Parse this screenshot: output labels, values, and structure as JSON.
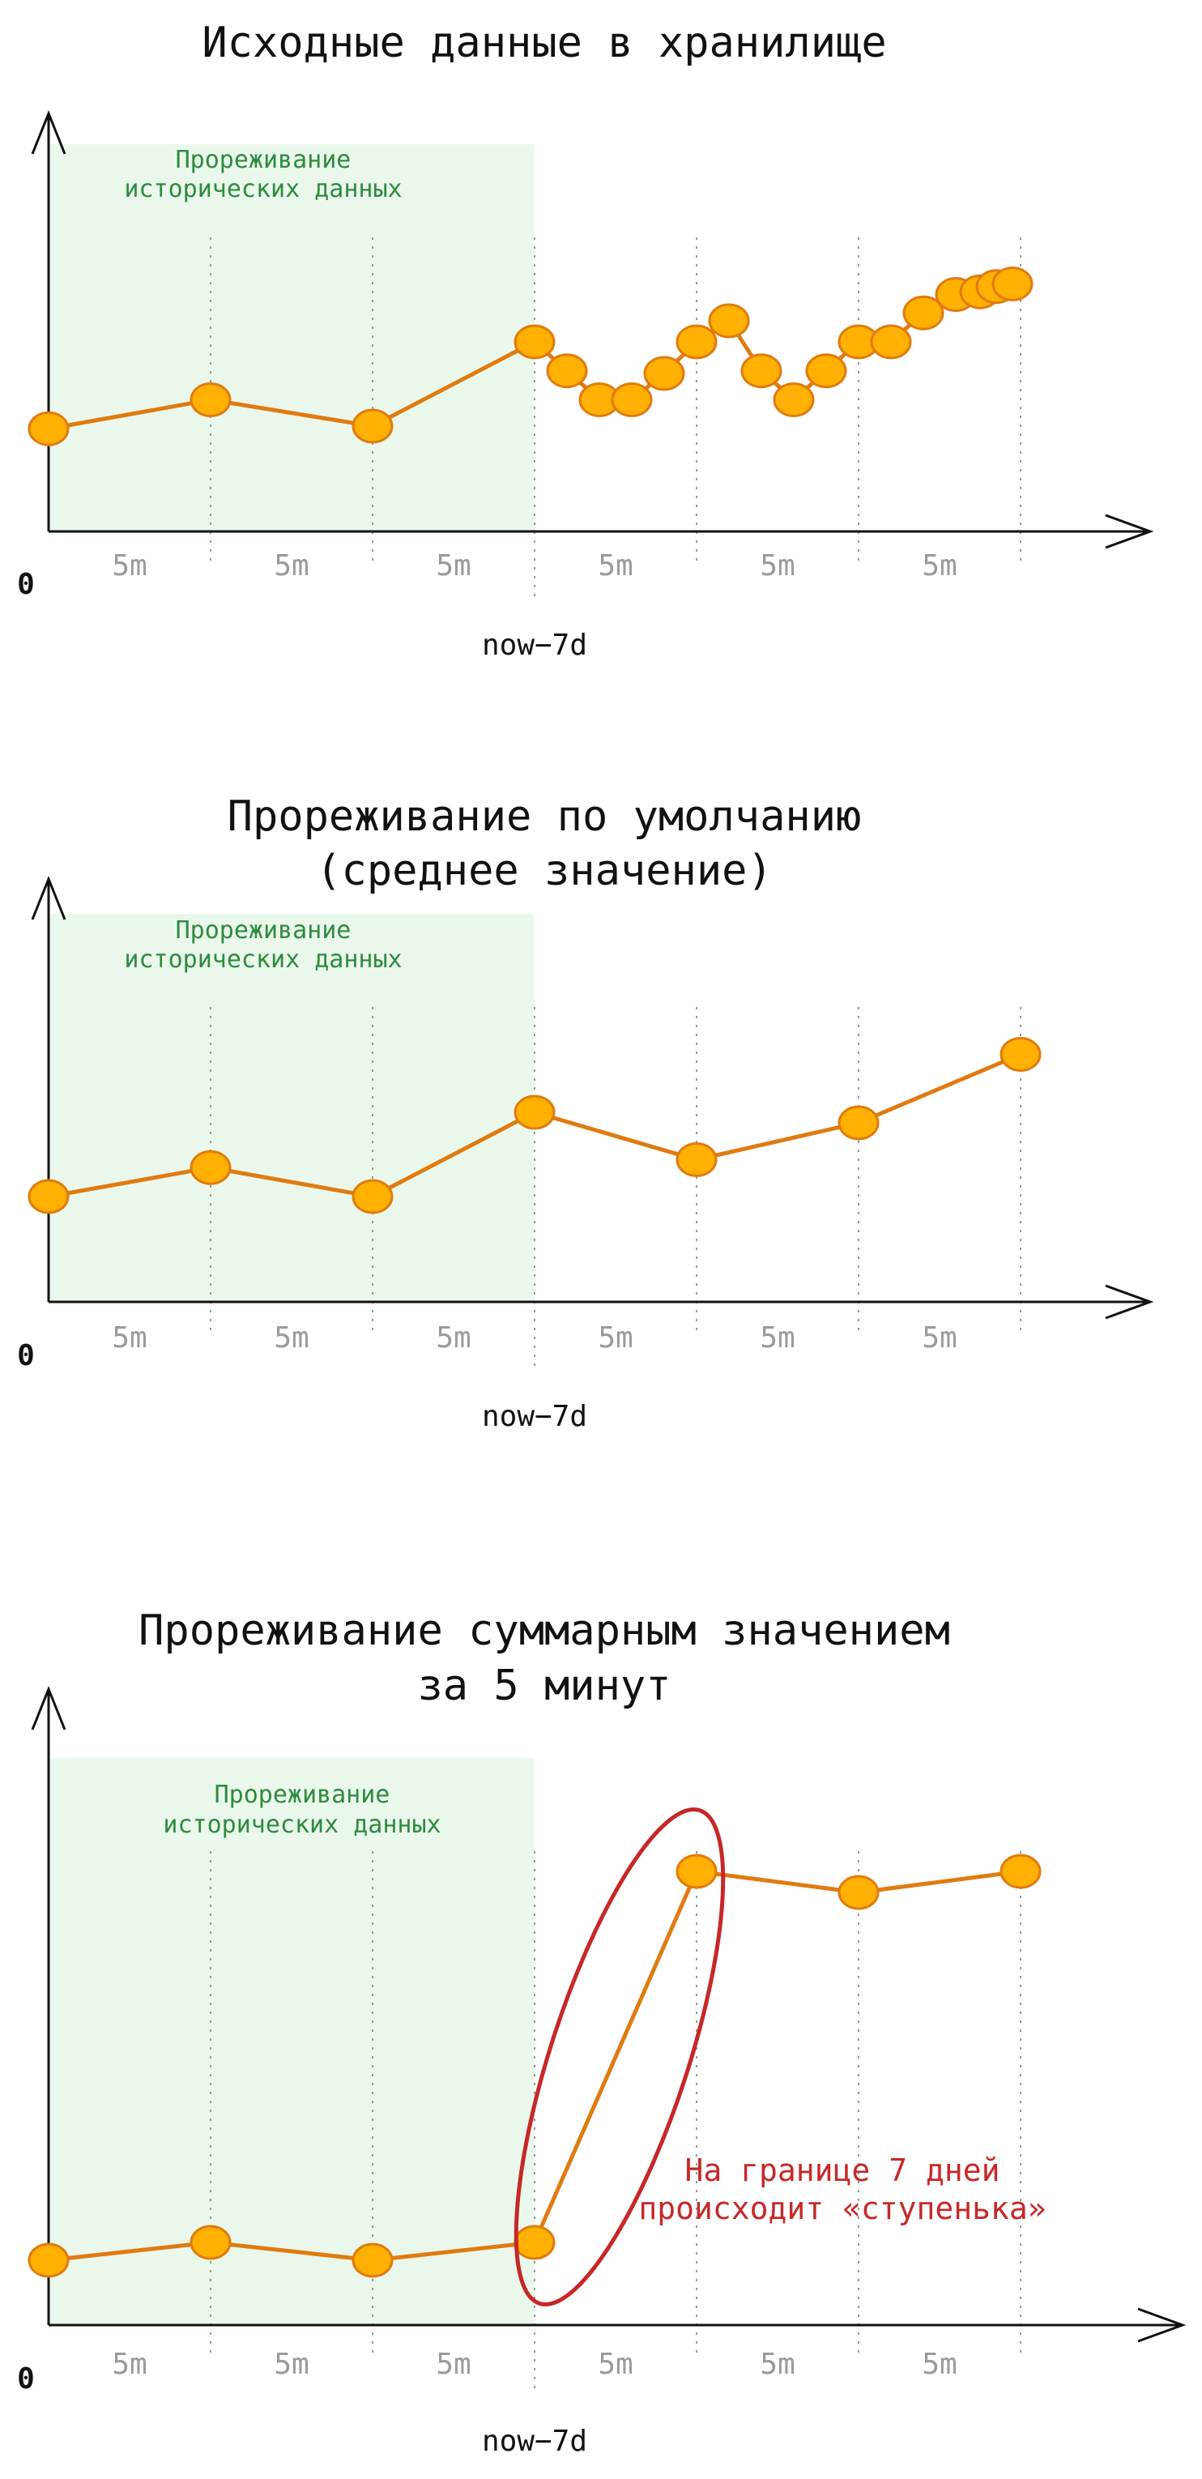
{
  "colors": {
    "series": "#e07b10",
    "point_fill": "#ffb000",
    "region_fill": "#eaf8ec",
    "axis": "#111111",
    "grid": "#999999",
    "annotation": "#c62828",
    "region_text": "#2e8b3e"
  },
  "chart_data": [
    {
      "type": "line",
      "title": "Исходные данные в хранилище",
      "region_label": [
        "Прореживание",
        "исторических данных"
      ],
      "x_tick_labels": [
        "5m",
        "5m",
        "5m",
        "5m",
        "5m",
        "5m"
      ],
      "origin_label": "0",
      "marker_label": "now−7d",
      "x": [
        0,
        1,
        2,
        3,
        3.2,
        3.4,
        3.6,
        3.8,
        4.0,
        4.2,
        4.4,
        4.6,
        4.8,
        5.0,
        5.2,
        5.4,
        5.6,
        5.75,
        5.85,
        5.95
      ],
      "y": [
        39,
        50,
        40,
        72,
        61,
        50,
        50,
        60,
        72,
        80,
        61,
        50,
        61,
        72,
        72,
        83,
        90,
        91,
        93,
        94
      ],
      "ylim": [
        0,
        140
      ],
      "xlim": [
        0,
        6.8
      ]
    },
    {
      "type": "line",
      "title": [
        "Прореживание по умолчанию",
        "(среднее значение)"
      ],
      "region_label": [
        "Прореживание",
        "исторических данных"
      ],
      "x_tick_labels": [
        "5m",
        "5m",
        "5m",
        "5m",
        "5m",
        "5m"
      ],
      "origin_label": "0",
      "marker_label": "now−7d",
      "x": [
        0,
        1,
        2,
        3,
        4,
        5,
        6
      ],
      "y": [
        40,
        51,
        40,
        72,
        54,
        68,
        94
      ],
      "ylim": [
        0,
        140
      ],
      "xlim": [
        0,
        6.8
      ]
    },
    {
      "type": "line",
      "title": [
        "Прореживание суммарным значением",
        "за 5 минут"
      ],
      "region_label": [
        "Прореживание",
        "исторических данных"
      ],
      "x_tick_labels": [
        "5m",
        "5m",
        "5m",
        "5m",
        "5m",
        "5m"
      ],
      "origin_label": "0",
      "marker_label": "now−7d",
      "annotation": [
        "На границе 7 дней",
        "происходит «ступенька»"
      ],
      "x": [
        0,
        1,
        2,
        3,
        4,
        5,
        6
      ],
      "y": [
        40,
        51,
        40,
        51,
        280,
        267,
        280
      ],
      "ylim": [
        0,
        320
      ],
      "xlim": [
        0,
        6.8
      ]
    }
  ]
}
